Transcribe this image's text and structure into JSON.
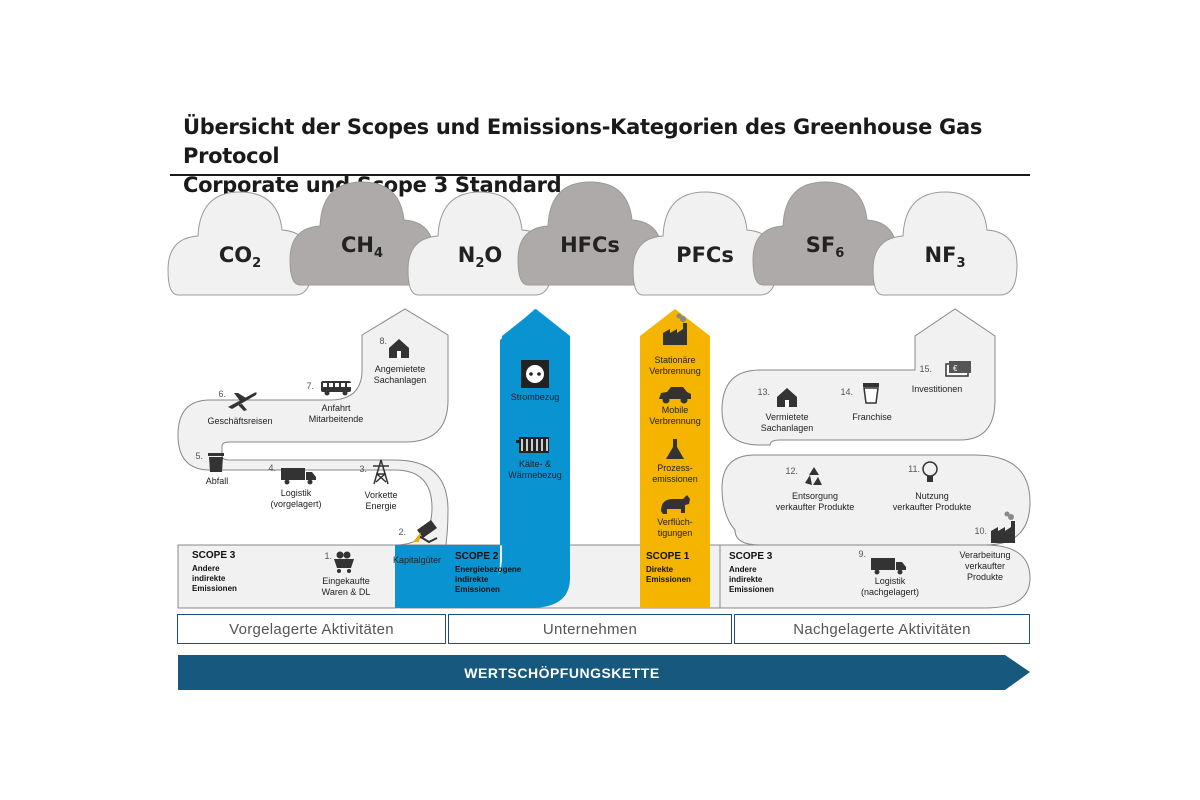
{
  "title": {
    "line1": "Übersicht der Scopes und Emissions-Kategorien des Greenhouse Gas Protocol",
    "line2": "Corporate und Scope 3 Standard"
  },
  "gases": [
    {
      "base": "CO",
      "sub": "2",
      "color": "light"
    },
    {
      "base": "CH",
      "sub": "4",
      "color": "dark"
    },
    {
      "base": "N",
      "sub": "2",
      "tail": "O",
      "color": "light"
    },
    {
      "base": "HFCs",
      "sub": "",
      "color": "dark"
    },
    {
      "base": "PFCs",
      "sub": "",
      "color": "light"
    },
    {
      "base": "SF",
      "sub": "6",
      "color": "dark"
    },
    {
      "base": "NF",
      "sub": "3",
      "color": "light"
    }
  ],
  "upstream": {
    "scope_title": "SCOPE  3",
    "scope_lines": [
      "Andere",
      "indirekte",
      "Emissionen"
    ],
    "items": [
      {
        "num": "1.",
        "lines": [
          "Eingekaufte",
          "Waren & DL"
        ],
        "icon": "cart-icon"
      },
      {
        "num": "2.",
        "lines": [
          "Kapitalgüter"
        ],
        "icon": "machine-icon"
      },
      {
        "num": "3.",
        "lines": [
          "Vorkette",
          "Energie"
        ],
        "icon": "power-pylon-icon"
      },
      {
        "num": "4.",
        "lines": [
          "Logistik",
          "(vorgelagert)"
        ],
        "icon": "truck-icon"
      },
      {
        "num": "5.",
        "lines": [
          "Abfall"
        ],
        "icon": "trash-bin-icon"
      },
      {
        "num": "6.",
        "lines": [
          "Geschäftsreisen"
        ],
        "icon": "airplane-icon"
      },
      {
        "num": "7.",
        "lines": [
          "Anfahrt",
          "Mitarbeitende"
        ],
        "icon": "bus-icon"
      },
      {
        "num": "8.",
        "lines": [
          "Angemietete",
          "Sachanlagen"
        ],
        "icon": "house-icon"
      }
    ]
  },
  "scope2": {
    "scope_title": "SCOPE  2",
    "scope_lines": [
      "Energiebezogene",
      "indirekte",
      "Emissionen"
    ],
    "items": [
      {
        "lines": [
          "Strombezug"
        ],
        "icon": "power-socket-icon"
      },
      {
        "lines": [
          "Kälte- &",
          "Wärmebezug"
        ],
        "icon": "radiator-icon"
      }
    ],
    "color": "#0a93d1"
  },
  "scope1": {
    "scope_title": "SCOPE  1",
    "scope_lines": [
      "Direkte",
      "Emissionen"
    ],
    "items": [
      {
        "lines": [
          "Stationäre",
          "Verbrennung"
        ],
        "icon": "factory-icon"
      },
      {
        "lines": [
          "Mobile",
          "Verbrennung"
        ],
        "icon": "car-icon"
      },
      {
        "lines": [
          "Prozess-",
          "emissionen"
        ],
        "icon": "flask-icon"
      },
      {
        "lines": [
          "Verflüch-",
          "tigungen"
        ],
        "icon": "cow-icon"
      }
    ],
    "color": "#f5b400"
  },
  "downstream": {
    "scope_title": "SCOPE  3",
    "scope_lines": [
      "Andere",
      "indirekte",
      "Emissionen"
    ],
    "items": [
      {
        "num": "9.",
        "lines": [
          "Logistik",
          "(nachgelagert)"
        ],
        "icon": "truck-icon"
      },
      {
        "num": "10.",
        "lines": [
          "Verarbeitung",
          "verkaufter",
          "Produkte"
        ],
        "icon": "factory-icon"
      },
      {
        "num": "11.",
        "lines": [
          "Nutzung",
          "verkaufter Produkte"
        ],
        "icon": "lightbulb-icon"
      },
      {
        "num": "12.",
        "lines": [
          "Entsorgung",
          "verkaufter Produkte"
        ],
        "icon": "recycle-icon"
      },
      {
        "num": "13.",
        "lines": [
          "Vermietete",
          "Sachanlagen"
        ],
        "icon": "house-icon"
      },
      {
        "num": "14.",
        "lines": [
          "Franchise"
        ],
        "icon": "cup-icon"
      },
      {
        "num": "15.",
        "lines": [
          "Investitionen"
        ],
        "icon": "money-icon"
      }
    ]
  },
  "activities": {
    "left": "Vorgelagerte  Aktivitäten",
    "center": "Unternehmen",
    "right": "Nachgelagerte  Aktivitäten"
  },
  "chain_label": "WERTSCHÖPFUNGSKETTE",
  "colors": {
    "cloud_light": "#f1f1f1",
    "cloud_dark": "#aeaaa9",
    "path_fill": "#f1f1f1",
    "path_stroke": "#888888",
    "navy": "#17587f",
    "box_border": "#1f4e79"
  }
}
